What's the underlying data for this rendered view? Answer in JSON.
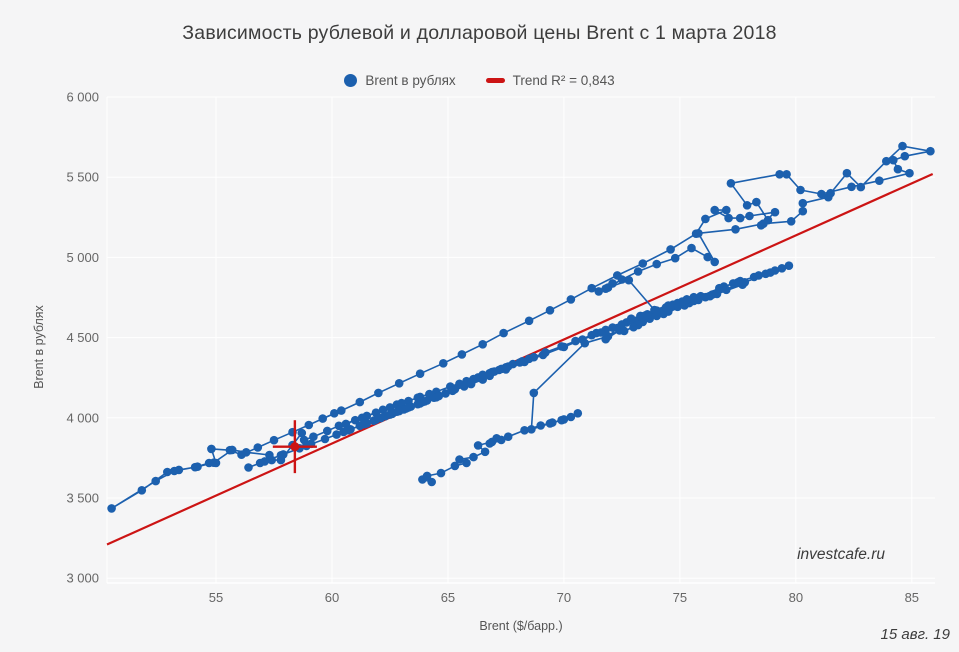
{
  "page": {
    "background": "#f5f5f6",
    "grid_color": "#ffffff"
  },
  "header": {
    "title": "Зависимость рублевой и долларовой цены Brent с 1 марта 2018"
  },
  "legend": {
    "items": [
      {
        "label": "Brent в рублях",
        "marker": "circle-icon",
        "color": "#1c60ae"
      },
      {
        "label": "Trend R² = 0,843",
        "marker": "dash-icon",
        "color": "#cc1414"
      }
    ]
  },
  "footer": {
    "watermark": "investcafe.ru",
    "date": "15 авг. 19"
  },
  "chart_data": {
    "type": "scatter",
    "title": "Зависимость рублевой и долларовой цены Brent с 1 марта 2018",
    "xlabel": "Brent ($/барр.)",
    "ylabel": "Brent в рублях",
    "xlim": [
      50.3,
      86.0
    ],
    "ylim": [
      2970,
      6000
    ],
    "x_ticks": [
      55,
      60,
      65,
      70,
      75,
      80,
      85
    ],
    "y_ticks": [
      3000,
      3500,
      4000,
      4500,
      5000,
      5500,
      6000
    ],
    "y_tick_labels": [
      "3 000",
      "3 500",
      "4 000",
      "4 500",
      "5 000",
      "5 500",
      "6 000"
    ],
    "grid": true,
    "legend_position": "top",
    "series": [
      {
        "name": "Brent в рублях",
        "color": "#1c60ae",
        "connected": true,
        "points": [
          [
            63.9,
            3615
          ],
          [
            64.3,
            3600
          ],
          [
            64.1,
            3638
          ],
          [
            64.7,
            3655
          ],
          [
            65.3,
            3700
          ],
          [
            65.8,
            3718
          ],
          [
            65.5,
            3740
          ],
          [
            66.1,
            3755
          ],
          [
            66.6,
            3788
          ],
          [
            66.3,
            3828
          ],
          [
            66.9,
            3850
          ],
          [
            67.3,
            3862
          ],
          [
            66.8,
            3840
          ],
          [
            67.1,
            3872
          ],
          [
            67.6,
            3882
          ],
          [
            68.3,
            3922
          ],
          [
            69.0,
            3952
          ],
          [
            69.5,
            3970
          ],
          [
            70.0,
            3990
          ],
          [
            70.3,
            4005
          ],
          [
            70.6,
            4028
          ],
          [
            69.9,
            3985
          ],
          [
            69.4,
            3965
          ],
          [
            68.6,
            3928
          ],
          [
            68.7,
            4155
          ],
          [
            70.9,
            4465
          ],
          [
            71.9,
            4508
          ],
          [
            72.4,
            4545
          ],
          [
            71.8,
            4490
          ],
          [
            72.3,
            4560
          ],
          [
            73.1,
            4598
          ],
          [
            73.8,
            4640
          ],
          [
            74.4,
            4678
          ],
          [
            73.6,
            4625
          ],
          [
            74.1,
            4652
          ],
          [
            74.8,
            4698
          ],
          [
            75.3,
            4728
          ],
          [
            74.6,
            4688
          ],
          [
            75.1,
            4715
          ],
          [
            75.9,
            4758
          ],
          [
            76.7,
            4808
          ],
          [
            77.3,
            4838
          ],
          [
            78.2,
            4878
          ],
          [
            77.6,
            4852
          ],
          [
            76.9,
            4818
          ],
          [
            77.5,
            4845
          ],
          [
            78.4,
            4888
          ],
          [
            79.1,
            4918
          ],
          [
            78.7,
            4898
          ],
          [
            79.4,
            4932
          ],
          [
            79.7,
            4948
          ],
          [
            78.9,
            4905
          ],
          [
            77.8,
            4845
          ],
          [
            76.4,
            4768
          ],
          [
            75.2,
            4700
          ],
          [
            74.3,
            4648
          ],
          [
            73.4,
            4598
          ],
          [
            74.0,
            4635
          ],
          [
            73.2,
            4578
          ],
          [
            72.6,
            4542
          ],
          [
            73.0,
            4565
          ],
          [
            73.7,
            4618
          ],
          [
            74.5,
            4662
          ],
          [
            75.4,
            4715
          ],
          [
            76.1,
            4752
          ],
          [
            75.6,
            4728
          ],
          [
            76.3,
            4758
          ],
          [
            77.0,
            4798
          ],
          [
            77.7,
            4830
          ],
          [
            76.6,
            4772
          ],
          [
            75.8,
            4735
          ],
          [
            74.9,
            4692
          ],
          [
            74.2,
            4660
          ],
          [
            73.6,
            4645
          ],
          [
            72.9,
            4618
          ],
          [
            73.3,
            4635
          ],
          [
            74.0,
            4668
          ],
          [
            74.7,
            4705
          ],
          [
            75.3,
            4738
          ],
          [
            74.5,
            4700
          ],
          [
            73.9,
            4672
          ],
          [
            72.8,
            4858
          ],
          [
            71.9,
            4812
          ],
          [
            71.5,
            4788
          ],
          [
            72.1,
            4838
          ],
          [
            71.8,
            4805
          ],
          [
            72.5,
            4862
          ],
          [
            73.2,
            4912
          ],
          [
            74.0,
            4958
          ],
          [
            74.8,
            4995
          ],
          [
            75.5,
            5058
          ],
          [
            76.2,
            5002
          ],
          [
            76.5,
            4972
          ],
          [
            75.8,
            5150
          ],
          [
            77.4,
            5175
          ],
          [
            78.6,
            5210
          ],
          [
            79.8,
            5225
          ],
          [
            80.3,
            5288
          ],
          [
            80.3,
            5338
          ],
          [
            81.4,
            5375
          ],
          [
            81.5,
            5400
          ],
          [
            82.2,
            5525
          ],
          [
            82.8,
            5438
          ],
          [
            83.9,
            5600
          ],
          [
            84.6,
            5694
          ],
          [
            85.8,
            5662
          ],
          [
            84.7,
            5631
          ],
          [
            84.2,
            5606
          ],
          [
            84.4,
            5550
          ],
          [
            84.9,
            5525
          ],
          [
            83.6,
            5478
          ],
          [
            82.4,
            5440
          ],
          [
            81.1,
            5395
          ],
          [
            80.2,
            5420
          ],
          [
            79.6,
            5518
          ],
          [
            79.3,
            5518
          ],
          [
            77.2,
            5462
          ],
          [
            77.9,
            5325
          ],
          [
            78.3,
            5345
          ],
          [
            78.8,
            5232
          ],
          [
            78.5,
            5200
          ],
          [
            79.1,
            5282
          ],
          [
            78.0,
            5258
          ],
          [
            77.6,
            5245
          ],
          [
            77.1,
            5245
          ],
          [
            76.5,
            5295
          ],
          [
            77.0,
            5295
          ],
          [
            76.1,
            5240
          ],
          [
            75.7,
            5148
          ],
          [
            74.6,
            5050
          ],
          [
            73.4,
            4962
          ],
          [
            72.3,
            4888
          ],
          [
            71.2,
            4808
          ],
          [
            70.3,
            4738
          ],
          [
            69.4,
            4670
          ],
          [
            68.5,
            4605
          ],
          [
            67.4,
            4528
          ],
          [
            66.5,
            4458
          ],
          [
            65.6,
            4395
          ],
          [
            64.8,
            4340
          ],
          [
            63.8,
            4275
          ],
          [
            62.9,
            4215
          ],
          [
            62.0,
            4155
          ],
          [
            61.2,
            4098
          ],
          [
            60.4,
            4045
          ],
          [
            59.6,
            3995
          ],
          [
            60.1,
            4028
          ],
          [
            59.0,
            3955
          ],
          [
            58.3,
            3910
          ],
          [
            57.5,
            3860
          ],
          [
            56.8,
            3815
          ],
          [
            56.1,
            3770
          ],
          [
            55.6,
            3798
          ],
          [
            54.8,
            3806
          ],
          [
            55.0,
            3718
          ],
          [
            54.7,
            3718
          ],
          [
            54.1,
            3692
          ],
          [
            53.4,
            3675
          ],
          [
            52.9,
            3662
          ],
          [
            51.8,
            3548
          ],
          [
            50.5,
            3435
          ],
          [
            52.4,
            3605
          ],
          [
            53.2,
            3668
          ],
          [
            54.2,
            3695
          ],
          [
            54.9,
            3720
          ],
          [
            55.7,
            3800
          ],
          [
            56.3,
            3785
          ],
          [
            57.3,
            3768
          ],
          [
            57.4,
            3736
          ],
          [
            57.8,
            3736
          ],
          [
            58.3,
            3830
          ],
          [
            58.7,
            3905
          ],
          [
            58.8,
            3862
          ],
          [
            59.2,
            3882
          ],
          [
            59.8,
            3918
          ],
          [
            60.3,
            3950
          ],
          [
            61.0,
            3985
          ],
          [
            60.6,
            3962
          ],
          [
            61.3,
            4000
          ],
          [
            61.9,
            4032
          ],
          [
            61.5,
            4012
          ],
          [
            62.2,
            4050
          ],
          [
            62.8,
            4082
          ],
          [
            63.3,
            4105
          ],
          [
            62.5,
            4065
          ],
          [
            63.0,
            4092
          ],
          [
            63.7,
            4125
          ],
          [
            64.2,
            4148
          ],
          [
            63.8,
            4130
          ],
          [
            64.5,
            4162
          ],
          [
            65.1,
            4195
          ],
          [
            65.8,
            4228
          ],
          [
            66.3,
            4252
          ],
          [
            65.5,
            4212
          ],
          [
            66.1,
            4242
          ],
          [
            66.8,
            4278
          ],
          [
            67.2,
            4298
          ],
          [
            66.5,
            4268
          ],
          [
            67.0,
            4288
          ],
          [
            67.6,
            4320
          ],
          [
            68.2,
            4352
          ],
          [
            67.8,
            4335
          ],
          [
            68.5,
            4368
          ],
          [
            67.3,
            4305
          ],
          [
            66.9,
            4285
          ],
          [
            67.5,
            4315
          ],
          [
            68.1,
            4345
          ],
          [
            68.7,
            4378
          ],
          [
            69.2,
            4408
          ],
          [
            69.9,
            4445
          ],
          [
            70.5,
            4478
          ],
          [
            71.2,
            4515
          ],
          [
            71.8,
            4548
          ],
          [
            71.4,
            4528
          ],
          [
            72.1,
            4562
          ],
          [
            72.7,
            4595
          ],
          [
            73.4,
            4632
          ],
          [
            74.0,
            4665
          ],
          [
            74.6,
            4698
          ],
          [
            75.1,
            4725
          ],
          [
            75.6,
            4752
          ],
          [
            74.9,
            4715
          ],
          [
            75.3,
            4738
          ],
          [
            74.4,
            4688
          ],
          [
            73.5,
            4638
          ],
          [
            72.5,
            4582
          ],
          [
            71.6,
            4532
          ],
          [
            70.8,
            4488
          ],
          [
            70.0,
            4442
          ],
          [
            69.1,
            4392
          ],
          [
            68.3,
            4348
          ],
          [
            67.5,
            4302
          ],
          [
            66.8,
            4262
          ],
          [
            66.0,
            4218
          ],
          [
            65.3,
            4178
          ],
          [
            64.6,
            4138
          ],
          [
            63.9,
            4098
          ],
          [
            64.4,
            4125
          ],
          [
            63.2,
            4058
          ],
          [
            62.5,
            4020
          ],
          [
            61.8,
            3982
          ],
          [
            62.3,
            4010
          ],
          [
            61.5,
            3965
          ],
          [
            60.8,
            3928
          ],
          [
            60.2,
            3895
          ],
          [
            60.7,
            3922
          ],
          [
            61.2,
            3950
          ],
          [
            61.9,
            3988
          ],
          [
            62.6,
            4025
          ],
          [
            63.1,
            4052
          ],
          [
            63.8,
            4090
          ],
          [
            64.5,
            4128
          ],
          [
            65.2,
            4168
          ],
          [
            66.0,
            4210
          ],
          [
            66.5,
            4238
          ],
          [
            65.7,
            4195
          ],
          [
            64.9,
            4152
          ],
          [
            64.1,
            4108
          ],
          [
            63.4,
            4070
          ],
          [
            62.8,
            4038
          ],
          [
            63.3,
            4065
          ],
          [
            64.0,
            4102
          ],
          [
            64.6,
            4135
          ],
          [
            63.7,
            4085
          ],
          [
            62.9,
            4042
          ],
          [
            62.1,
            3998
          ],
          [
            61.4,
            3960
          ],
          [
            60.5,
            3912
          ],
          [
            59.7,
            3868
          ],
          [
            58.9,
            3825
          ],
          [
            57.9,
            3772
          ],
          [
            56.9,
            3718
          ],
          [
            56.4,
            3690
          ],
          [
            57.1,
            3728
          ],
          [
            57.8,
            3766
          ],
          [
            58.6,
            3810
          ],
          [
            59.1,
            3838
          ],
          [
            58.4,
            3820
          ]
        ]
      }
    ],
    "trend": {
      "name": "Trend R² = 0,843",
      "r2": "0,843",
      "color": "#cc1414",
      "x1": 50.3,
      "y1": 3210,
      "x2": 85.9,
      "y2": 5520
    },
    "last_point_marker": {
      "x": 58.4,
      "y": 3820,
      "color": "#cc1414",
      "half_width_x": 0.95,
      "half_height_y": 165
    }
  }
}
